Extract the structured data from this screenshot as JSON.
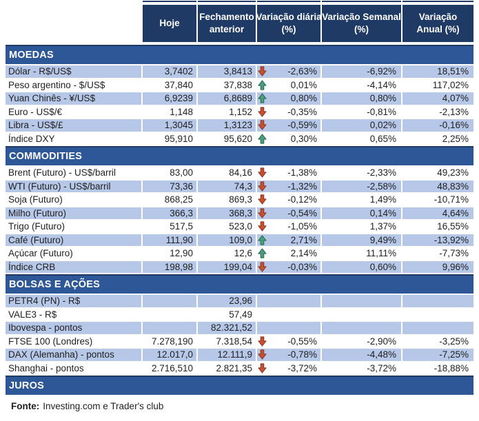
{
  "chart_data": {
    "type": "table",
    "columns": [
      [
        "Hoje"
      ],
      [
        "Fechamento",
        "anterior"
      ],
      [
        "Variação diária",
        "(%)"
      ],
      [
        "Variação Semanal",
        "(%)"
      ],
      [
        "Variação",
        "Anual (%)"
      ]
    ],
    "sections": [
      {
        "title": "MOEDAS",
        "rows": [
          {
            "label": "Dólar - R$/US$",
            "hoje": "3,7402",
            "fechamento": "3,8413",
            "arrow": "down",
            "diaria": "-2,63%",
            "semanal": "-6,92%",
            "anual": "18,51%"
          },
          {
            "label": "Peso argentino - $/US$",
            "hoje": "37,840",
            "fechamento": "37,838",
            "arrow": "up",
            "diaria": "0,01%",
            "semanal": "-4,14%",
            "anual": "117,02%"
          },
          {
            "label": "Yuan Chinês - ¥/US$",
            "hoje": "6,9239",
            "fechamento": "6,8689",
            "arrow": "up",
            "diaria": "0,80%",
            "semanal": "0,80%",
            "anual": "4,07%"
          },
          {
            "label": "Euro - US$/€",
            "hoje": "1,148",
            "fechamento": "1,152",
            "arrow": "down",
            "diaria": "-0,35%",
            "semanal": "-0,81%",
            "anual": "-2,13%"
          },
          {
            "label": "Libra - US$/£",
            "hoje": "1,3045",
            "fechamento": "1,3123",
            "arrow": "down",
            "diaria": "-0,59%",
            "semanal": "0,02%",
            "anual": "-0,16%"
          },
          {
            "label": "Índice DXY",
            "hoje": "95,910",
            "fechamento": "95,620",
            "arrow": "up",
            "diaria": "0,30%",
            "semanal": "0,65%",
            "anual": "2,25%"
          }
        ]
      },
      {
        "title": "COMMODITIES",
        "rows": [
          {
            "label": "Brent (Futuro) - US$/barril",
            "hoje": "83,00",
            "fechamento": "84,16",
            "arrow": "down",
            "diaria": "-1,38%",
            "semanal": "-2,33%",
            "anual": "49,23%"
          },
          {
            "label": "WTI (Futuro) - US$/barril",
            "hoje": "73,36",
            "fechamento": "74,3",
            "arrow": "down",
            "diaria": "-1,32%",
            "semanal": "-2,58%",
            "anual": "48,83%"
          },
          {
            "label": "Soja (Futuro)",
            "hoje": "868,25",
            "fechamento": "869,3",
            "arrow": "down",
            "diaria": "-0,12%",
            "semanal": "1,49%",
            "anual": "-10,71%"
          },
          {
            "label": "Milho (Futuro)",
            "hoje": "366,3",
            "fechamento": "368,3",
            "arrow": "down",
            "diaria": "-0,54%",
            "semanal": "0,14%",
            "anual": "4,64%"
          },
          {
            "label": "Trigo (Futuro)",
            "hoje": "517,5",
            "fechamento": "523,0",
            "arrow": "down",
            "diaria": "-1,05%",
            "semanal": "1,37%",
            "anual": "16,55%"
          },
          {
            "label": "Café (Futuro)",
            "hoje": "111,90",
            "fechamento": "109,0",
            "arrow": "up",
            "diaria": "2,71%",
            "semanal": "9,49%",
            "anual": "-13,92%"
          },
          {
            "label": "Açúcar (Futuro)",
            "hoje": "12,90",
            "fechamento": "12,6",
            "arrow": "up",
            "diaria": "2,14%",
            "semanal": "11,11%",
            "anual": "-7,73%"
          },
          {
            "label": "Índice CRB",
            "hoje": "198,98",
            "fechamento": "199,04",
            "arrow": "down",
            "diaria": "-0,03%",
            "semanal": "0,60%",
            "anual": "9,96%"
          }
        ]
      },
      {
        "title": "BOLSAS E AÇÕES",
        "rows": [
          {
            "label": "PETR4 (PN) - R$",
            "hoje": "",
            "fechamento": "23,96",
            "arrow": null,
            "diaria": "",
            "semanal": "",
            "anual": ""
          },
          {
            "label": "VALE3 - R$",
            "hoje": "",
            "fechamento": "57,49",
            "arrow": null,
            "diaria": "",
            "semanal": "",
            "anual": ""
          },
          {
            "label": "Ibovespa - pontos",
            "hoje": "",
            "fechamento": "82.321,52",
            "arrow": null,
            "diaria": "",
            "semanal": "",
            "anual": ""
          },
          {
            "label": "FTSE 100 (Londres)",
            "hoje": "7.278,190",
            "fechamento": "7.318,54",
            "arrow": "down",
            "diaria": "-0,55%",
            "semanal": "-2,90%",
            "anual": "-3,25%"
          },
          {
            "label": "DAX (Alemanha) - pontos",
            "hoje": "12.017,0",
            "fechamento": "12.111,9",
            "arrow": "down",
            "diaria": "-0,78%",
            "semanal": "-4,48%",
            "anual": "-7,25%"
          },
          {
            "label": "Shanghai - pontos",
            "hoje": "2.716,510",
            "fechamento": "2.821,35",
            "arrow": "down",
            "diaria": "-3,72%",
            "semanal": "-3,72%",
            "anual": "-18,88%"
          }
        ]
      },
      {
        "title": "JUROS",
        "rows": []
      }
    ]
  },
  "footer": {
    "label": "Fonte:",
    "text": "Investing.com e Trader's club"
  },
  "colors": {
    "header_bg": "#1F3A64",
    "section_bg": "#2E5797",
    "row_alt_bg": "#B6C7E7",
    "row_bg": "#FFFFFF",
    "text": "#1F1F1F",
    "header_text": "#FFFFFF",
    "arrow_up_fill": "#4D9E7C",
    "arrow_up_stroke": "#256B4D",
    "arrow_down_fill": "#C7502F",
    "arrow_down_stroke": "#8E3523"
  },
  "icons": {
    "up": "arrow-up-icon",
    "down": "arrow-down-icon"
  }
}
